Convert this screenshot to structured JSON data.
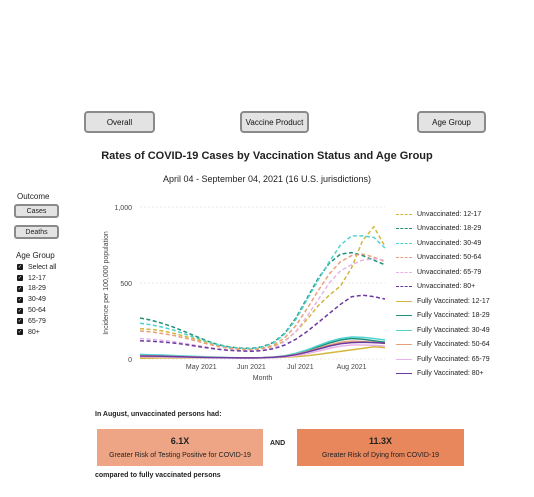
{
  "tabs": {
    "overall": "Overall",
    "vaccine_product": "Vaccine Product",
    "age_group": "Age Group"
  },
  "title": "Rates of COVID-19 Cases by Vaccination Status and Age Group",
  "subtitle": "April 04 - September 04, 2021 (16 U.S. jurisdictions)",
  "outcome": {
    "label": "Outcome",
    "cases": "Cases",
    "deaths": "Deaths"
  },
  "age_filter": {
    "label": "Age Group",
    "items": [
      "Select all",
      "12-17",
      "18-29",
      "30-49",
      "50-64",
      "65-79",
      "80+"
    ]
  },
  "colors": {
    "12-17": "#d4b63c",
    "18-29": "#1f8f7a",
    "30-49": "#4fd3cf",
    "50-64": "#e8a07a",
    "65-79": "#e8b4e8",
    "80+": "#6b3a9e"
  },
  "chart_data": {
    "type": "line",
    "xlabel": "Month",
    "ylabel": "Incidence per 100,000 population",
    "ylim": [
      0,
      1000
    ],
    "yticks": [
      "0",
      "500",
      "1,000"
    ],
    "xticks": [
      "May 2021",
      "Jun 2021",
      "Jul 2021",
      "Aug 2021"
    ],
    "x": [
      "Apr 04",
      "Apr 11",
      "Apr 18",
      "Apr 25",
      "May 02",
      "May 09",
      "May 16",
      "May 23",
      "May 30",
      "Jun 06",
      "Jun 13",
      "Jun 20",
      "Jun 27",
      "Jul 04",
      "Jul 11",
      "Jul 18",
      "Jul 25",
      "Aug 01",
      "Aug 08",
      "Aug 15",
      "Aug 22",
      "Aug 29",
      "Sep 04"
    ],
    "grid": "horizontal",
    "legend": "right",
    "series": [
      {
        "name": "Unvaccinated: 12-17",
        "group": "12-17",
        "dash": true,
        "values": [
          200,
          195,
          185,
          170,
          150,
          130,
          110,
          90,
          75,
          68,
          65,
          70,
          85,
          120,
          180,
          260,
          350,
          420,
          480,
          600,
          780,
          870,
          740
        ]
      },
      {
        "name": "Unvaccinated: 18-29",
        "group": "18-29",
        "dash": true,
        "values": [
          270,
          255,
          235,
          210,
          180,
          150,
          120,
          95,
          80,
          72,
          70,
          80,
          110,
          170,
          270,
          400,
          530,
          630,
          690,
          700,
          680,
          650,
          620
        ]
      },
      {
        "name": "Unvaccinated: 30-49",
        "group": "30-49",
        "dash": true,
        "values": [
          235,
          225,
          210,
          190,
          165,
          140,
          115,
          92,
          78,
          70,
          68,
          78,
          105,
          165,
          260,
          390,
          520,
          640,
          750,
          810,
          810,
          800,
          730
        ]
      },
      {
        "name": "Unvaccinated: 50-64",
        "group": "50-64",
        "dash": true,
        "values": [
          185,
          178,
          168,
          155,
          138,
          120,
          100,
          82,
          70,
          63,
          60,
          68,
          92,
          140,
          220,
          330,
          450,
          560,
          640,
          680,
          690,
          670,
          640
        ]
      },
      {
        "name": "Unvaccinated: 65-79",
        "group": "65-79",
        "dash": true,
        "values": [
          135,
          130,
          124,
          115,
          103,
          90,
          78,
          66,
          58,
          53,
          50,
          56,
          75,
          115,
          180,
          280,
          390,
          500,
          580,
          620,
          650,
          660,
          650
        ]
      },
      {
        "name": "Unvaccinated: 80+",
        "group": "80+",
        "dash": true,
        "values": [
          120,
          117,
          112,
          105,
          96,
          85,
          74,
          64,
          57,
          53,
          51,
          55,
          68,
          92,
          130,
          180,
          240,
          300,
          360,
          410,
          420,
          410,
          395
        ]
      },
      {
        "name": "Fully Vaccinated: 12-17",
        "group": "12-17",
        "dash": false,
        "values": [
          5,
          6,
          7,
          7,
          8,
          8,
          8,
          8,
          8,
          8,
          8,
          9,
          10,
          12,
          16,
          22,
          30,
          40,
          50,
          60,
          70,
          80,
          75
        ]
      },
      {
        "name": "Fully Vaccinated: 18-29",
        "group": "18-29",
        "dash": false,
        "values": [
          25,
          24,
          22,
          20,
          18,
          15,
          12,
          10,
          8,
          7,
          7,
          8,
          12,
          20,
          35,
          55,
          80,
          105,
          125,
          135,
          130,
          120,
          110
        ]
      },
      {
        "name": "Fully Vaccinated: 30-49",
        "group": "30-49",
        "dash": false,
        "values": [
          30,
          28,
          26,
          23,
          20,
          17,
          14,
          11,
          9,
          8,
          8,
          9,
          13,
          22,
          38,
          60,
          88,
          115,
          135,
          145,
          142,
          135,
          125
        ]
      },
      {
        "name": "Fully Vaccinated: 50-64",
        "group": "50-64",
        "dash": false,
        "values": [
          22,
          21,
          19,
          17,
          15,
          13,
          11,
          9,
          8,
          7,
          7,
          8,
          11,
          18,
          30,
          48,
          70,
          92,
          110,
          118,
          115,
          110,
          102
        ]
      },
      {
        "name": "Fully Vaccinated: 65-79",
        "group": "65-79",
        "dash": false,
        "values": [
          15,
          14,
          13,
          12,
          11,
          10,
          9,
          8,
          7,
          6,
          6,
          7,
          9,
          14,
          22,
          35,
          52,
          70,
          85,
          92,
          92,
          90,
          85
        ]
      },
      {
        "name": "Fully Vaccinated: 80+",
        "group": "80+",
        "dash": false,
        "values": [
          20,
          19,
          18,
          16,
          14,
          12,
          10,
          9,
          8,
          7,
          7,
          8,
          11,
          17,
          28,
          45,
          65,
          85,
          100,
          108,
          110,
          108,
          104
        ]
      }
    ]
  },
  "summary": {
    "heading": "In August, unvaccinated persons had:",
    "box1_value": "6.1X",
    "box1_text": "Greater Risk of Testing Positive for COVID-19",
    "and": "AND",
    "box2_value": "11.3X",
    "box2_text": "Greater Risk of Dying from COVID-19",
    "footer": "compared to fully vaccinated persons",
    "box1_color": "#eea585",
    "box2_color": "#e8865c"
  }
}
